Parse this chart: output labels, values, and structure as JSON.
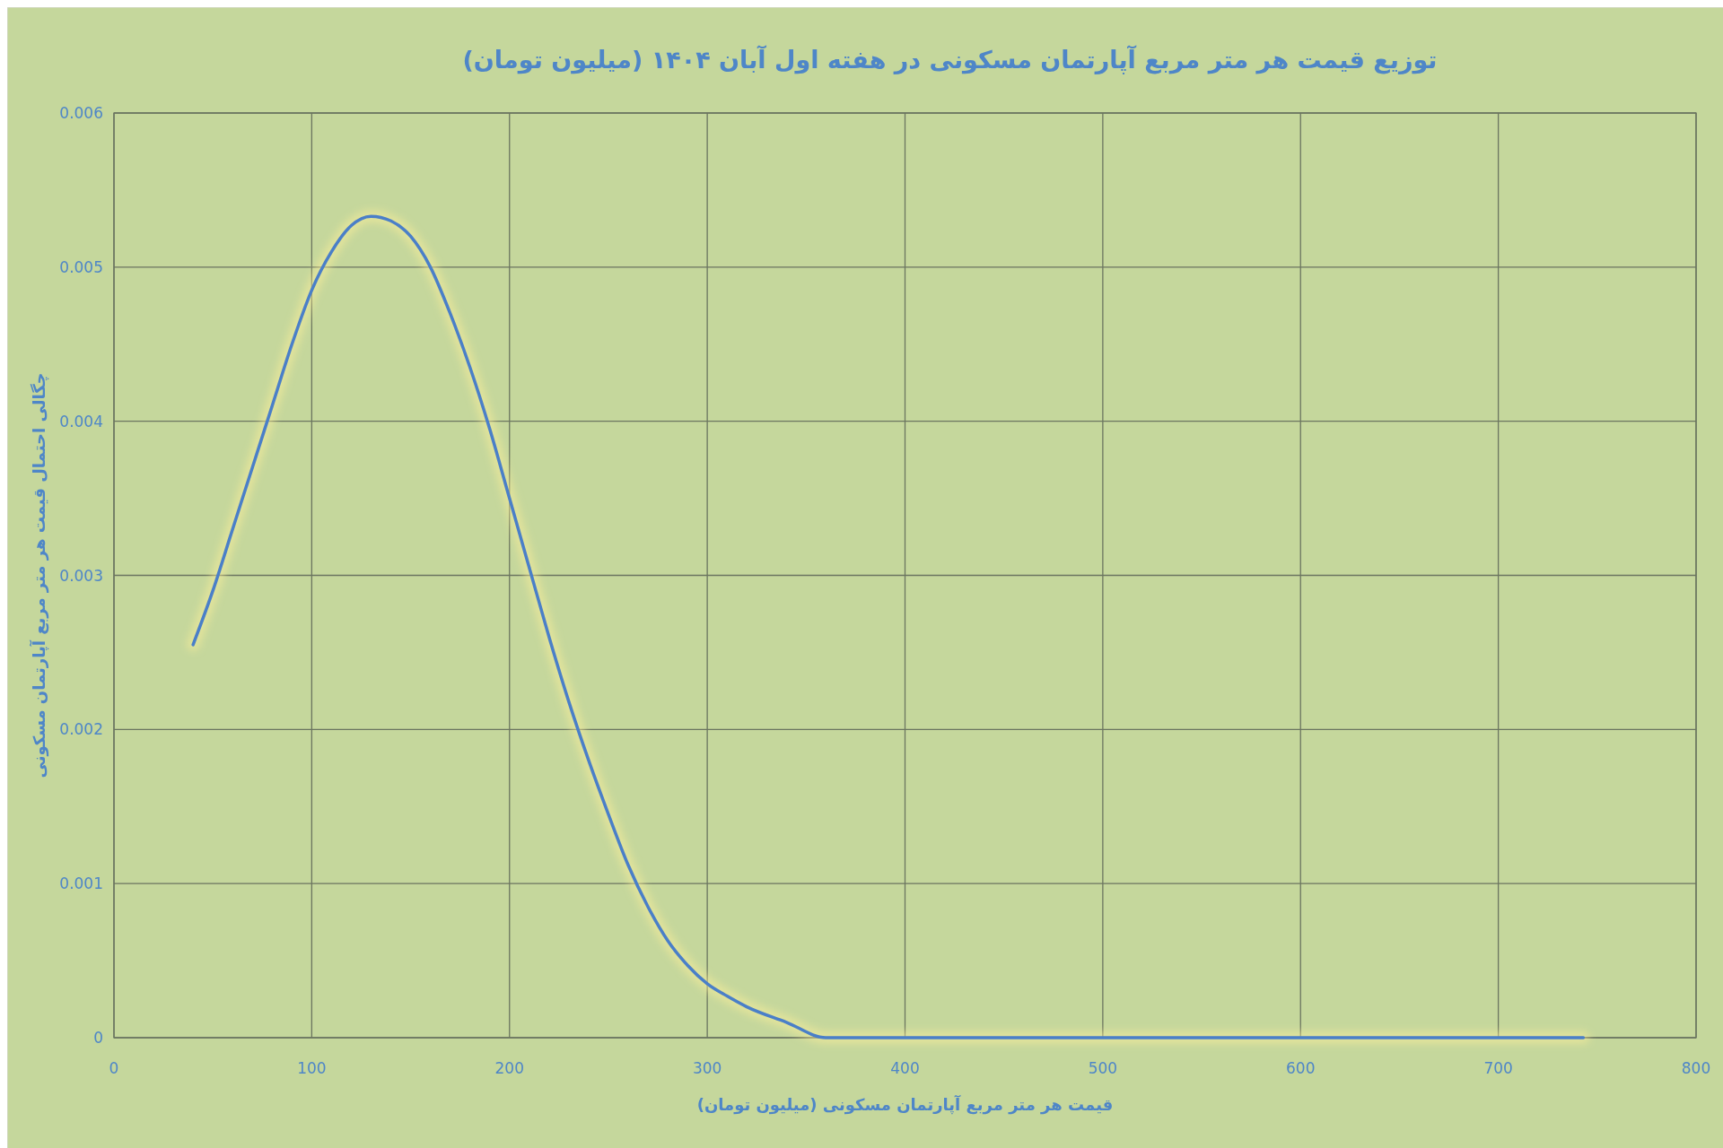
{
  "chart_data": {
    "type": "line",
    "title": "توزیع قیمت هر متر مربع آپارتمان مسکونی در هفته اول آبان ۱۴۰۴ (میلیون تومان)",
    "xlabel": "قیمت هر متر مربع آپارتمان مسکونی (میلیون تومان)",
    "ylabel": "چگالی احتمال قیمت هر متر مربع آپارتمان مسکونی",
    "x": [
      40,
      50,
      60,
      70,
      80,
      90,
      100,
      110,
      120,
      130,
      140,
      150,
      160,
      170,
      180,
      190,
      200,
      210,
      220,
      230,
      240,
      250,
      260,
      270,
      280,
      290,
      300,
      310,
      320,
      340,
      360,
      380,
      400,
      450,
      500,
      600,
      700,
      743
    ],
    "series": [
      {
        "color": "#4a7fc8",
        "values": [
          0.00255,
          0.0029,
          0.0033,
          0.0037,
          0.0041,
          0.0045,
          0.00485,
          0.0051,
          0.00527,
          0.00533,
          0.0053,
          0.0052,
          0.005,
          0.0047,
          0.00435,
          0.00395,
          0.0035,
          0.00305,
          0.0026,
          0.00218,
          0.0018,
          0.00145,
          0.00112,
          0.00085,
          0.00063,
          0.00047,
          0.00035,
          0.00027,
          0.0002,
          0.0001,
          0,
          0,
          0,
          0,
          0,
          0,
          0,
          0
        ]
      }
    ],
    "xlim": [
      0,
      800
    ],
    "xticks": [
      0,
      100,
      200,
      300,
      400,
      500,
      600,
      700,
      800
    ],
    "ylim": [
      0,
      0.006
    ],
    "yticks": [
      0,
      0.001,
      0.002,
      0.003,
      0.004,
      0.005,
      0.006
    ],
    "grid": true,
    "marker": "none",
    "line_style": "solid"
  }
}
